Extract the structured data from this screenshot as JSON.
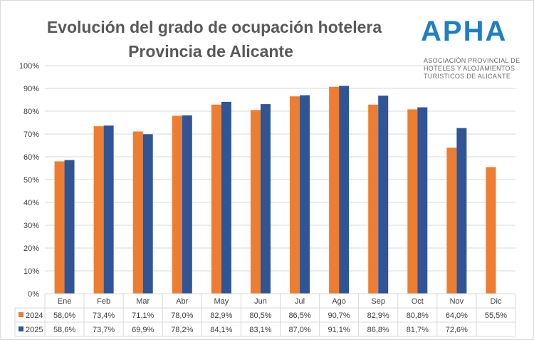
{
  "chart_data": {
    "type": "bar",
    "title": "Evolución del grado de ocupación hotelera",
    "subtitle": "Provincia de Alicante",
    "categories": [
      "Ene",
      "Feb",
      "Mar",
      "Abr",
      "May",
      "Jun",
      "Jul",
      "Ago",
      "Sep",
      "Oct",
      "Nov",
      "Dic"
    ],
    "series": [
      {
        "name": "2024",
        "color": "#ED7D31",
        "values": [
          58.0,
          73.4,
          71.1,
          78.0,
          82.9,
          80.5,
          86.5,
          90.7,
          82.9,
          80.8,
          64.0,
          55.5
        ],
        "labels": [
          "58,0%",
          "73,4%",
          "71,1%",
          "78,0%",
          "82,9%",
          "80,5%",
          "86,5%",
          "90,7%",
          "82,9%",
          "80,8%",
          "64,0%",
          "55,5%"
        ]
      },
      {
        "name": "2025",
        "color": "#2F5597",
        "values": [
          58.6,
          73.7,
          69.9,
          78.2,
          84.1,
          83.1,
          87.0,
          91.1,
          86.8,
          81.7,
          72.6,
          null
        ],
        "labels": [
          "58,6%",
          "73,7%",
          "69,9%",
          "78,2%",
          "84,1%",
          "83,1%",
          "87,0%",
          "91,1%",
          "86,8%",
          "81,7%",
          "72,6%",
          ""
        ]
      }
    ],
    "ylim": [
      0,
      100
    ],
    "yticks": [
      "0%",
      "10%",
      "20%",
      "30%",
      "40%",
      "50%",
      "60%",
      "70%",
      "80%",
      "90%",
      "100%"
    ],
    "grid": true,
    "legend": "data-table"
  },
  "logo": {
    "word": "APHA",
    "lines": [
      "ASOCIACIÓN PROVINCIAL DE",
      "HOTELES Y ALOJAMIENTOS",
      "TURÍSTICOS DE ALICANTE"
    ]
  }
}
